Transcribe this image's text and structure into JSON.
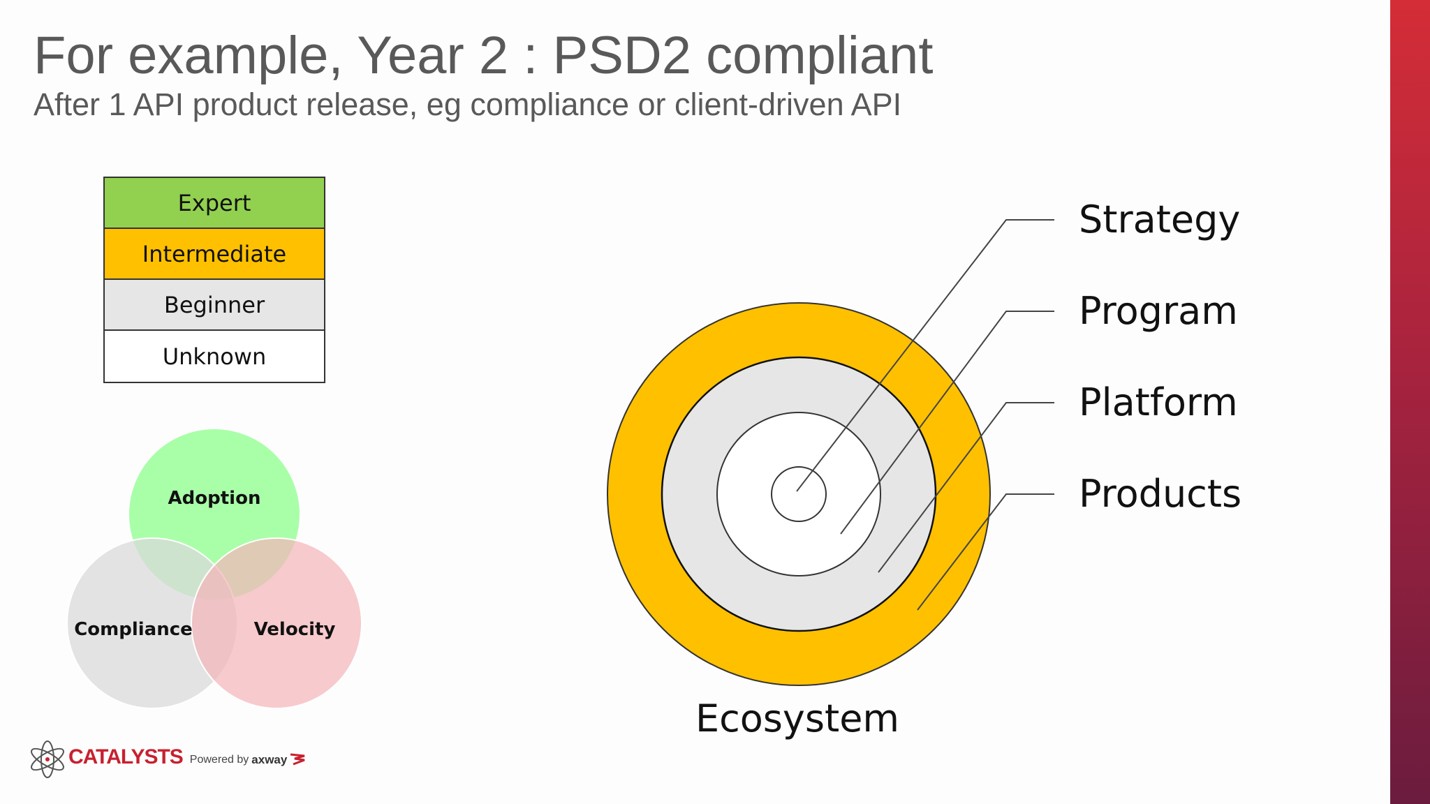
{
  "title": "For example, Year 2 : PSD2 compliant",
  "subtitle": "After 1 API product release, eg compliance or client-driven API",
  "legend": {
    "items": [
      {
        "label": "Expert",
        "color": "#92d050"
      },
      {
        "label": "Intermediate",
        "color": "#ffc000"
      },
      {
        "label": "Beginner",
        "color": "#e7e6e6"
      },
      {
        "label": "Unknown",
        "color": "#ffffff"
      }
    ]
  },
  "venn": {
    "adoption": {
      "label": "Adoption",
      "color": "#99ff99"
    },
    "compliance": {
      "label": "Compliance",
      "color": "#d9d9d9"
    },
    "velocity": {
      "label": "Velocity",
      "color": "#f4b6bb"
    }
  },
  "rings": {
    "strategy": {
      "label": "Strategy",
      "level": "Unknown"
    },
    "program": {
      "label": "Program",
      "level": "Unknown"
    },
    "platform": {
      "label": "Platform",
      "level": "Beginner"
    },
    "products": {
      "label": "Products",
      "level": "Intermediate"
    },
    "ecosystem": {
      "label": "Ecosystem"
    }
  },
  "logo": {
    "name": "CATALYSTS",
    "powered_by": "Powered by",
    "partner": "axway"
  },
  "colors": {
    "accent_bar_top": "#d42d37",
    "accent_bar_bottom": "#6b1c3e",
    "title_gray": "#595959"
  }
}
